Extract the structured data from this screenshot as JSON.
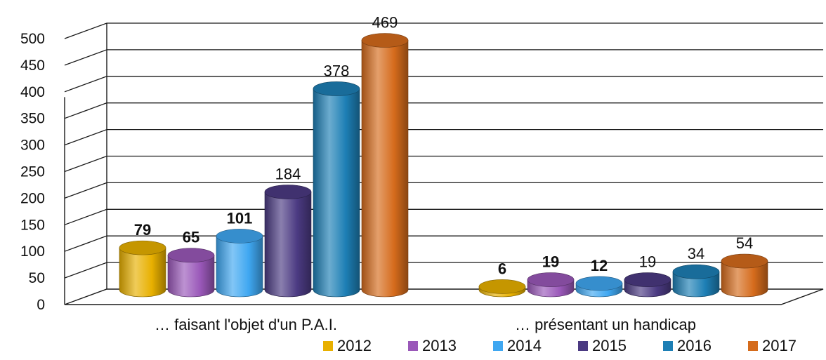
{
  "chart_data": {
    "type": "bar",
    "title": "",
    "xlabel": "",
    "ylabel": "",
    "categories": [
      "… faisant l'objet d'un P.A.I.",
      "… présentant un handicap"
    ],
    "series": [
      {
        "name": "2012",
        "values": [
          79,
          6
        ],
        "color": "#E8B000"
      },
      {
        "name": "2013",
        "values": [
          65,
          19
        ],
        "color": "#9A58B9"
      },
      {
        "name": "2014",
        "values": [
          101,
          12
        ],
        "color": "#3FA7F1"
      },
      {
        "name": "2015",
        "values": [
          184,
          19
        ],
        "color": "#4B3A82"
      },
      {
        "name": "2016",
        "values": [
          378,
          34
        ],
        "color": "#1D7FB5"
      },
      {
        "name": "2017",
        "values": [
          469,
          54
        ],
        "color": "#D56B1C"
      }
    ],
    "data_labels": [
      [
        "79",
        "6"
      ],
      [
        "65",
        "19"
      ],
      [
        "101",
        "12"
      ],
      [
        "184",
        "19"
      ],
      [
        "378",
        "34"
      ],
      [
        "469",
        "54"
      ]
    ],
    "ylim": [
      0,
      500
    ],
    "yticks": [
      "0",
      "50",
      "100",
      "150",
      "200",
      "250",
      "300",
      "350",
      "400",
      "450",
      "500"
    ],
    "grid": true,
    "legend_position": "bottom-right",
    "style": "3d-cylinders"
  }
}
